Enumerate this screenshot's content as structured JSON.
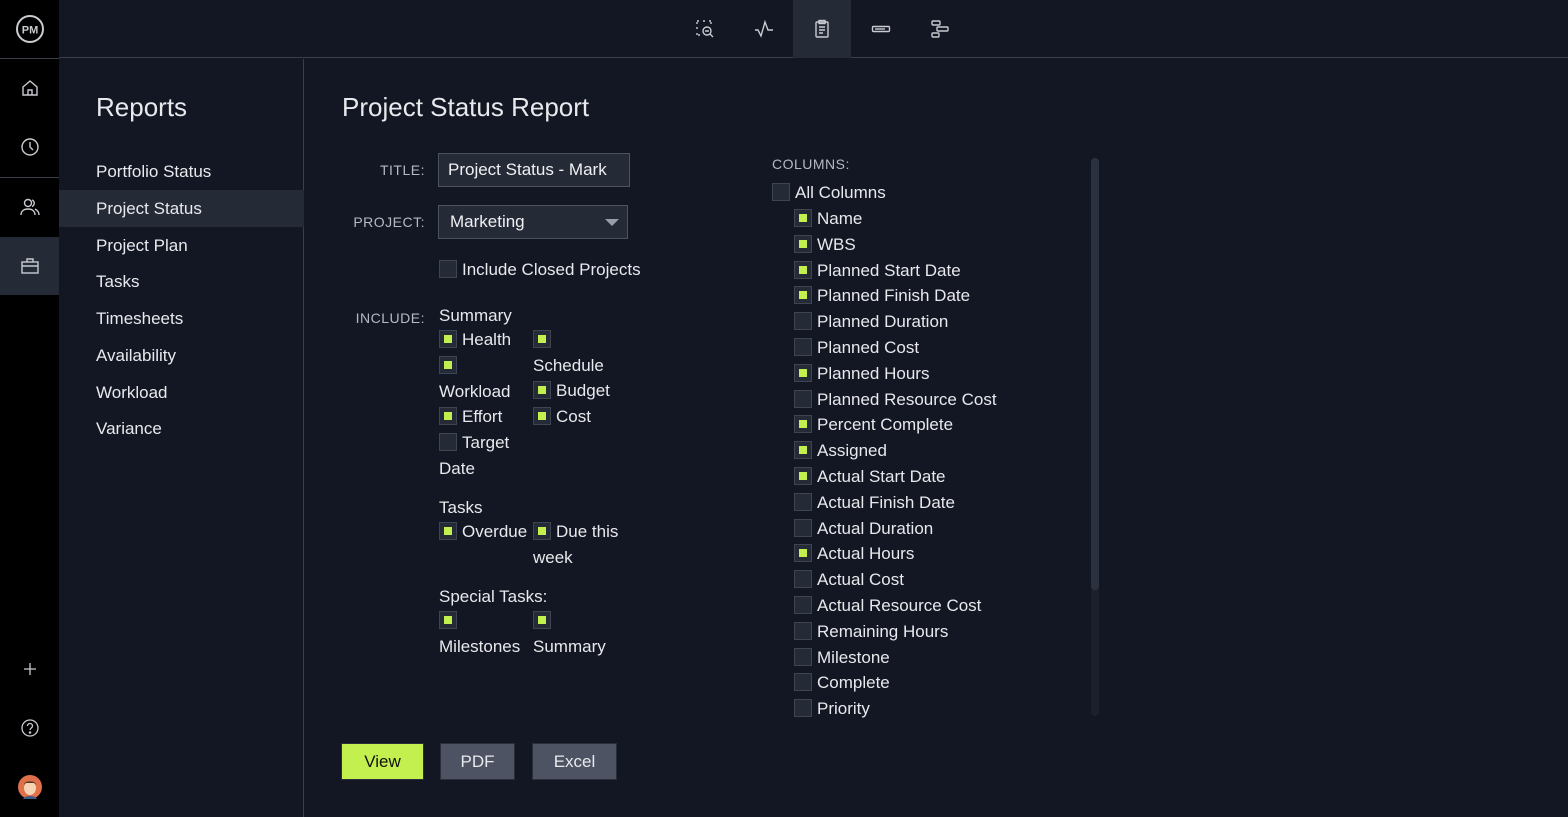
{
  "rail": {
    "logo": "PM",
    "items": [
      "home-icon",
      "clock-icon",
      "users-icon",
      "briefcase-icon"
    ],
    "bottom": [
      "plus-icon",
      "help-icon",
      "avatar"
    ]
  },
  "toolbar": {
    "icons": [
      "zoom-select-icon",
      "activity-icon",
      "clipboard-icon",
      "bar-icon",
      "gantt-icon"
    ],
    "active": "clipboard-icon"
  },
  "sidebar": {
    "title": "Reports",
    "items": [
      {
        "label": "Portfolio Status"
      },
      {
        "label": "Project Status",
        "selected": true
      },
      {
        "label": "Project Plan"
      },
      {
        "label": "Tasks"
      },
      {
        "label": "Timesheets"
      },
      {
        "label": "Availability"
      },
      {
        "label": "Workload"
      },
      {
        "label": "Variance"
      }
    ]
  },
  "main": {
    "title": "Project Status Report",
    "title_label": "TITLE:",
    "title_value": "Project Status - Mark",
    "project_label": "PROJECT:",
    "project_value": "Marketing",
    "include_closed": {
      "label": "Include Closed Projects",
      "checked": false
    },
    "include_label": "INCLUDE:",
    "summary_heading": "Summary",
    "summary": [
      {
        "label": "Health",
        "checked": true
      },
      {
        "label": "Schedule",
        "checked": true
      },
      {
        "label": "Workload",
        "checked": true
      },
      {
        "label": "Budget",
        "checked": true
      },
      {
        "label": "Effort",
        "checked": true
      },
      {
        "label": "Cost",
        "checked": true
      },
      {
        "label": "Target Date",
        "checked": false
      }
    ],
    "tasks_heading": "Tasks",
    "tasks": [
      {
        "label": "Overdue",
        "checked": true
      },
      {
        "label": "Due this week",
        "checked": true
      }
    ],
    "special_heading": "Special Tasks:",
    "special": [
      {
        "label": "Milestones",
        "checked": true
      },
      {
        "label": "Summary",
        "checked": true
      }
    ],
    "columns_label": "COLUMNS:",
    "all_columns": {
      "label": "All Columns",
      "checked": false
    },
    "columns": [
      {
        "label": "Name",
        "checked": true
      },
      {
        "label": "WBS",
        "checked": true
      },
      {
        "label": "Planned Start Date",
        "checked": true
      },
      {
        "label": "Planned Finish Date",
        "checked": true
      },
      {
        "label": "Planned Duration",
        "checked": false
      },
      {
        "label": "Planned Cost",
        "checked": false
      },
      {
        "label": "Planned Hours",
        "checked": true
      },
      {
        "label": "Planned Resource Cost",
        "checked": false
      },
      {
        "label": "Percent Complete",
        "checked": true
      },
      {
        "label": "Assigned",
        "checked": true
      },
      {
        "label": "Actual Start Date",
        "checked": true
      },
      {
        "label": "Actual Finish Date",
        "checked": false
      },
      {
        "label": "Actual Duration",
        "checked": false
      },
      {
        "label": "Actual Hours",
        "checked": true
      },
      {
        "label": "Actual Cost",
        "checked": false
      },
      {
        "label": "Actual Resource Cost",
        "checked": false
      },
      {
        "label": "Remaining Hours",
        "checked": false
      },
      {
        "label": "Milestone",
        "checked": false
      },
      {
        "label": "Complete",
        "checked": false
      },
      {
        "label": "Priority",
        "checked": false
      }
    ],
    "buttons": {
      "view": "View",
      "pdf": "PDF",
      "excel": "Excel"
    }
  },
  "colors": {
    "accent": "#c3f04f",
    "background": "#131623",
    "selected": "#252a37",
    "button": "#4d5363"
  }
}
